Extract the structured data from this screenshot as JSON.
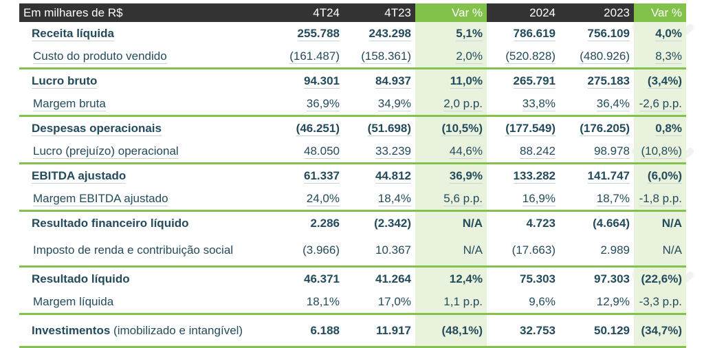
{
  "header": {
    "label": "Em milhares de R$",
    "columns": [
      "4T24",
      "4T23",
      "Var %",
      "2024",
      "2023",
      "Var %"
    ]
  },
  "rows": [
    {
      "label": "Receita líquida",
      "values": [
        "255.788",
        "243.298",
        "5,1%",
        "786.619",
        "756.109",
        "4,0%"
      ]
    },
    {
      "label": "Custo do produto vendido",
      "values": [
        "(161.487)",
        "(158.361)",
        "2,0%",
        "(520.828)",
        "(480.926)",
        "8,3%"
      ]
    },
    {
      "label": "Lucro bruto",
      "values": [
        "94.301",
        "84.937",
        "11,0%",
        "265.791",
        "275.183",
        "(3,4%)"
      ]
    },
    {
      "label": "Margem bruta",
      "values": [
        "36,9%",
        "34,9%",
        "2,0 p.p.",
        "33,8%",
        "36,4%",
        "-2,6 p.p."
      ]
    },
    {
      "label": "Despesas operacionais",
      "values": [
        "(46.251)",
        "(51.698)",
        "(10,5%)",
        "(177.549)",
        "(176.205)",
        "0,8%"
      ]
    },
    {
      "label": "Lucro (prejuízo) operacional",
      "values": [
        "48.050",
        "33.239",
        "44,6%",
        "88.242",
        "98.978",
        "(10,8%)"
      ]
    },
    {
      "label": "EBITDA ajustado",
      "values": [
        "61.337",
        "44.812",
        "36,9%",
        "133.282",
        "141.747",
        "(6,0%)"
      ]
    },
    {
      "label": "Margem EBITDA ajustado",
      "values": [
        "24,0%",
        "18,4%",
        "5,6 p.p.",
        "16,9%",
        "18,7%",
        "-1,8 p.p."
      ]
    },
    {
      "label": "Resultado financeiro líquido",
      "values": [
        "2.286",
        "(2.342)",
        "N/A",
        "4.723",
        "(4.664)",
        "N/A"
      ]
    },
    {
      "label": "Imposto de renda e contribuição social",
      "values": [
        "(3.966)",
        "10.367",
        "N/A",
        "(17.663)",
        "2.989",
        "N/A"
      ]
    },
    {
      "label": "Resultado líquido",
      "values": [
        "46.371",
        "41.264",
        "12,4%",
        "75.303",
        "97.303",
        "(22,6%)"
      ]
    },
    {
      "label": "Margem líquida",
      "values": [
        "18,1%",
        "17,0%",
        "1,1 p.p.",
        "9,6%",
        "12,9%",
        "-3,3 p.p."
      ]
    },
    {
      "label": "Investimentos",
      "label_note": "(imobilizado e intangível)",
      "values": [
        "6.188",
        "11.917",
        "(48,1%)",
        "32.753",
        "50.129",
        "(34,7%)"
      ]
    }
  ]
}
